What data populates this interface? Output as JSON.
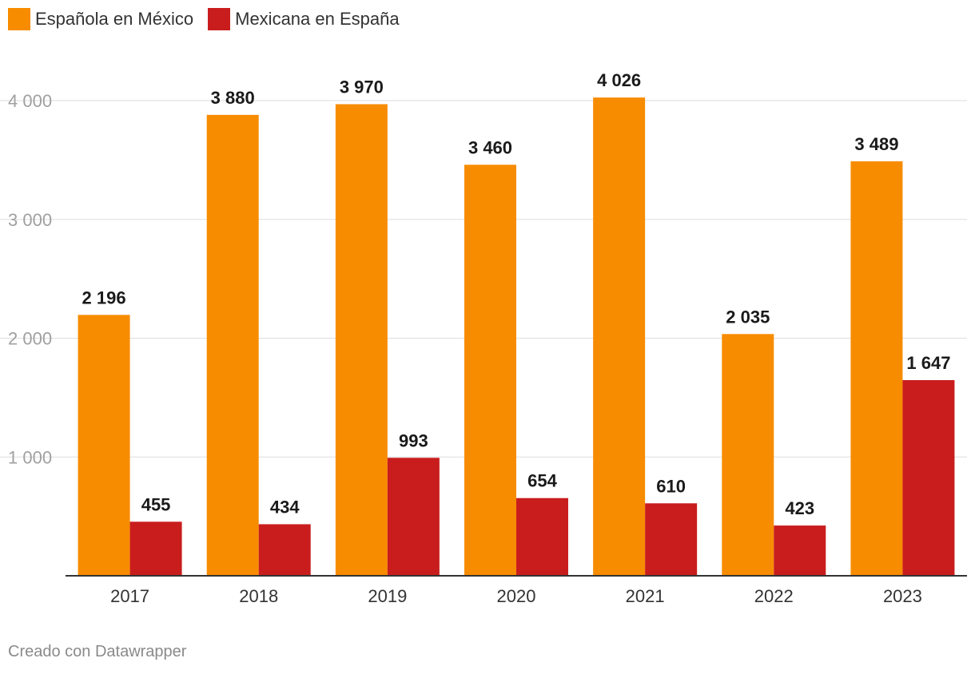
{
  "chart_data": {
    "type": "bar",
    "categories": [
      "2017",
      "2018",
      "2019",
      "2020",
      "2021",
      "2022",
      "2023"
    ],
    "series": [
      {
        "name": "Española en México",
        "color": "#f78c00",
        "values": [
          2196,
          3880,
          3970,
          3460,
          4026,
          2035,
          3489
        ]
      },
      {
        "name": "Mexicana en España",
        "color": "#c91d1d",
        "values": [
          455,
          434,
          993,
          654,
          610,
          423,
          1647
        ]
      }
    ],
    "ylim": [
      0,
      4400
    ],
    "yticks": [
      1000,
      2000,
      3000,
      4000
    ],
    "ytick_labels": [
      "1 000",
      "2 000",
      "3 000",
      "4 000"
    ],
    "value_labels": [
      [
        "2 196",
        "3 880",
        "3 970",
        "3 460",
        "4 026",
        "2 035",
        "3 489"
      ],
      [
        "455",
        "434",
        "993",
        "654",
        "610",
        "423",
        "1 647"
      ]
    ],
    "grid": true,
    "legend": "top-left"
  },
  "footer": {
    "credit": "Creado con Datawrapper"
  }
}
